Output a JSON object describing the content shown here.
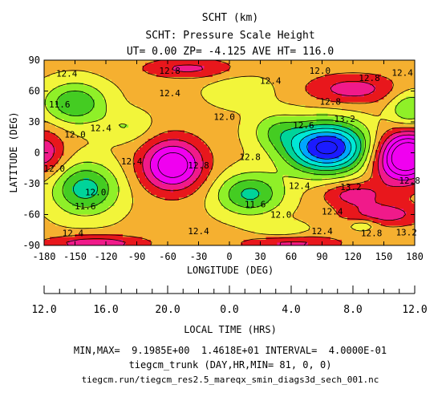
{
  "chart_data": {
    "type": "heatmap",
    "title_lines": [
      "SCHT (km)",
      "SCHT: Pressure Scale Height",
      "UT= 0.00 ZP= -4.125 AVE HT= 116.0"
    ],
    "xlabel": "LONGITUDE (DEG)",
    "ylabel": "LATITUDE (DEG)",
    "xlim": [
      -180,
      180
    ],
    "ylim": [
      -90,
      90
    ],
    "x_ticks": [
      "-180",
      "-150",
      "-120",
      "-90",
      "-60",
      "-30",
      "0",
      "30",
      "60",
      "90",
      "120",
      "150",
      "180"
    ],
    "y_ticks": [
      "90",
      "60",
      "30",
      "0",
      "-30",
      "-60",
      "-90"
    ],
    "lt_axis_label": "LOCAL TIME (HRS)",
    "lt_ticks": [
      "12.0",
      "16.0",
      "20.0",
      "0.0",
      "4.0",
      "8.0",
      "12.0"
    ],
    "base_value": 12.3,
    "features": [
      {
        "lon": 95,
        "lat": 5,
        "amp": -3.1,
        "rlon": 40,
        "rlat": 24
      },
      {
        "lon": -55,
        "lat": -12,
        "amp": 1.9,
        "rlon": 30,
        "rlat": 25
      },
      {
        "lon": 165,
        "lat": -5,
        "amp": 2.0,
        "rlon": 28,
        "rlat": 25
      },
      {
        "lon": -180,
        "lat": 0,
        "amp": 1.0,
        "rlon": 20,
        "rlat": 22
      },
      {
        "lon": 180,
        "lat": 0,
        "amp": 1.0,
        "rlon": 20,
        "rlat": 22
      },
      {
        "lon": -150,
        "lat": 48,
        "amp": -1.3,
        "rlon": 30,
        "rlat": 20
      },
      {
        "lon": -140,
        "lat": -35,
        "amp": -1.5,
        "rlon": 32,
        "rlat": 25
      },
      {
        "lon": 20,
        "lat": -40,
        "amp": -1.4,
        "rlon": 32,
        "rlat": 20
      },
      {
        "lon": 45,
        "lat": 22,
        "amp": -0.7,
        "rlon": 25,
        "rlat": 18
      },
      {
        "lon": 175,
        "lat": 42,
        "amp": -1.0,
        "rlon": 20,
        "rlat": 18
      },
      {
        "lon": 120,
        "lat": 62,
        "amp": 0.9,
        "rlon": 45,
        "rlat": 15
      },
      {
        "lon": -40,
        "lat": 82,
        "amp": 0.8,
        "rlon": 45,
        "rlat": 10
      },
      {
        "lon": 150,
        "lat": -60,
        "amp": 0.9,
        "rlon": 40,
        "rlat": 12
      },
      {
        "lon": -130,
        "lat": -88,
        "amp": 1.0,
        "rlon": 50,
        "rlat": 8
      },
      {
        "lon": 60,
        "lat": -88,
        "amp": 0.8,
        "rlon": 50,
        "rlat": 8
      },
      {
        "lon": 120,
        "lat": -40,
        "amp": 0.9,
        "rlon": 30,
        "rlat": 12
      },
      {
        "lon": 130,
        "lat": -70,
        "amp": -0.6,
        "rlon": 15,
        "rlat": 6
      },
      {
        "lon": 50,
        "lat": -75,
        "amp": -0.5,
        "rlon": 25,
        "rlat": 8
      },
      {
        "lon": -100,
        "lat": 25,
        "amp": -0.5,
        "rlon": 25,
        "rlat": 15
      },
      {
        "lon": 10,
        "lat": 60,
        "amp": -0.5,
        "rlon": 30,
        "rlat": 15
      }
    ],
    "color_scale": [
      {
        "max": 9.8,
        "color": "#1b1bff"
      },
      {
        "max": 10.2,
        "color": "#00a6ff"
      },
      {
        "max": 10.6,
        "color": "#00e8d6"
      },
      {
        "max": 11.0,
        "color": "#00d49a"
      },
      {
        "max": 11.4,
        "color": "#44cc22"
      },
      {
        "max": 11.8,
        "color": "#8ff028"
      },
      {
        "max": 12.2,
        "color": "#f2f53a"
      },
      {
        "max": 12.6,
        "color": "#f5b030"
      },
      {
        "max": 13.0,
        "color": "#e8171c"
      },
      {
        "max": 13.4,
        "color": "#f01a8a"
      },
      {
        "max": 99,
        "color": "#f000f0"
      }
    ],
    "contour_labels": [
      {
        "text": "12.4",
        "lon": -158,
        "lat": 77
      },
      {
        "text": "12.8",
        "lon": -58,
        "lat": 80
      },
      {
        "text": "12.4",
        "lon": 40,
        "lat": 70
      },
      {
        "text": "12.0",
        "lon": 88,
        "lat": 80
      },
      {
        "text": "12.8",
        "lon": 136,
        "lat": 73
      },
      {
        "text": "12.4",
        "lon": 168,
        "lat": 78
      },
      {
        "text": "11.6",
        "lon": -165,
        "lat": 47
      },
      {
        "text": "12.4",
        "lon": -58,
        "lat": 58
      },
      {
        "text": "12.8",
        "lon": 98,
        "lat": 50
      },
      {
        "text": "12.0",
        "lon": -150,
        "lat": 18
      },
      {
        "text": "12.4",
        "lon": -125,
        "lat": 24
      },
      {
        "text": "12.0",
        "lon": -5,
        "lat": 35
      },
      {
        "text": "13.2",
        "lon": 112,
        "lat": 33
      },
      {
        "text": "12.6",
        "lon": 72,
        "lat": 27
      },
      {
        "text": "12.0",
        "lon": -170,
        "lat": -15
      },
      {
        "text": "12.4",
        "lon": -95,
        "lat": -8
      },
      {
        "text": "12.8",
        "lon": -30,
        "lat": -12
      },
      {
        "text": "12.8",
        "lon": 20,
        "lat": -4
      },
      {
        "text": "12.4",
        "lon": 68,
        "lat": -32
      },
      {
        "text": "13.2",
        "lon": 118,
        "lat": -33
      },
      {
        "text": "12.8",
        "lon": 175,
        "lat": -27
      },
      {
        "text": "12.0",
        "lon": -130,
        "lat": -38
      },
      {
        "text": "11.6",
        "lon": -140,
        "lat": -52
      },
      {
        "text": "11.6",
        "lon": 25,
        "lat": -50
      },
      {
        "text": "12.0",
        "lon": 50,
        "lat": -60
      },
      {
        "text": "12.4",
        "lon": 100,
        "lat": -57
      },
      {
        "text": "12.4",
        "lon": -152,
        "lat": -78
      },
      {
        "text": "12.4",
        "lon": -30,
        "lat": -76
      },
      {
        "text": "12.4",
        "lon": 90,
        "lat": -76
      },
      {
        "text": "12.8",
        "lon": 138,
        "lat": -78
      },
      {
        "text": "13.2",
        "lon": 172,
        "lat": -77
      }
    ],
    "footer_lines": [
      "MIN,MAX=  9.1985E+00  1.4618E+01 INTERVAL=  4.0000E-01",
      "tiegcm_trunk (DAY,HR,MIN= 81, 0, 0)",
      "tiegcm.run/tiegcm_res2.5_mareqx_smin_diags3d_sech_001.nc"
    ]
  }
}
